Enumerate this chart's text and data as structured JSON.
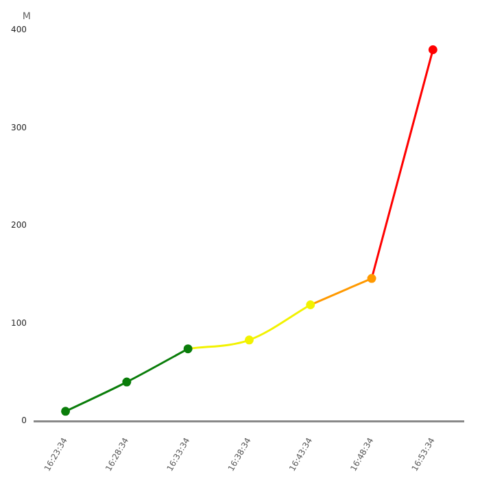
{
  "chart_data": {
    "type": "line",
    "ylabel": "M",
    "categories": [
      "16:23:34",
      "16:28:34",
      "16:33:34",
      "16:38:34",
      "16:43:34",
      "16:48:34",
      "16:53:34"
    ],
    "series": [
      {
        "color": "#0a7d0a",
        "values": [
          10,
          40,
          74,
          null,
          null,
          null,
          null
        ]
      },
      {
        "color": "#f2f200",
        "values": [
          null,
          null,
          74,
          83,
          119,
          null,
          null
        ]
      },
      {
        "color": "#ff9900",
        "values": [
          null,
          null,
          null,
          null,
          119,
          146,
          null
        ]
      },
      {
        "color": "#ff0000",
        "values": [
          null,
          null,
          null,
          null,
          null,
          146,
          380
        ]
      }
    ],
    "ylim": [
      0,
      400
    ],
    "yticks": [
      0,
      100,
      200,
      300,
      400
    ],
    "grid": false,
    "legend": false,
    "marker": "circle",
    "line_style": "solid"
  }
}
